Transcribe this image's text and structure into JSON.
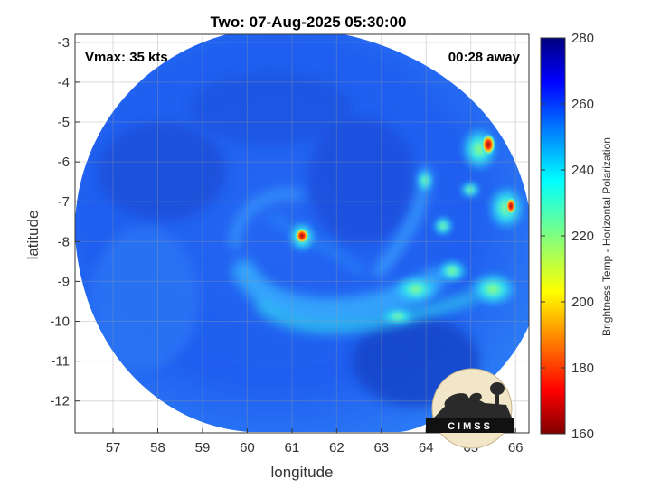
{
  "chart_data": {
    "type": "heatmap",
    "title": "Two: 07-Aug-2025 05:30:00",
    "xlabel": "longitude",
    "ylabel": "latitude",
    "xlim": [
      56.15,
      66.3
    ],
    "ylim": [
      -12.8,
      -2.8
    ],
    "x_ticks": [
      57,
      58,
      59,
      60,
      61,
      62,
      63,
      64,
      65,
      66
    ],
    "y_ticks": [
      -3,
      -4,
      -5,
      -6,
      -7,
      -8,
      -9,
      -10,
      -11,
      -12
    ],
    "grid": true,
    "colorbar": {
      "label": "Brightness Temp - Horizontal Polarization",
      "range": [
        160,
        280
      ],
      "ticks": [
        280,
        260,
        240,
        220,
        200,
        180,
        160
      ],
      "colormap": "jet"
    },
    "annotations": {
      "vmax": "Vmax: 35 kts",
      "time_away": "00:28 away"
    },
    "swath_background_value": 262,
    "features": [
      {
        "desc": "storm center warm spot",
        "lon": 61.2,
        "lat": -7.8,
        "value": 170
      },
      {
        "desc": "cloud band",
        "lon": 63.8,
        "lat": -9.2,
        "value": 232
      },
      {
        "desc": "warm spot",
        "lon": 65.4,
        "lat": -5.5,
        "value": 195
      }
    ]
  },
  "logo": {
    "text": "CIMSS"
  },
  "colors": {
    "page_background": "#ffffff",
    "swath_base": "#1f5cf0",
    "warm_spot": "#c41e16"
  }
}
